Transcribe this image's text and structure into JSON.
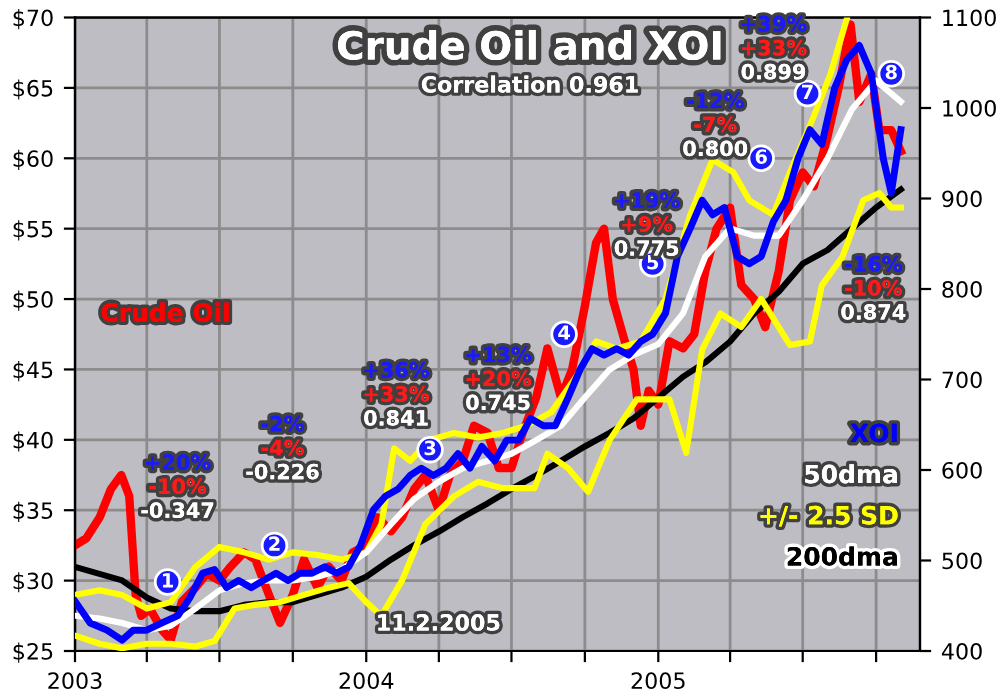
{
  "chart_data": {
    "type": "line",
    "title": "Crude Oil and XOI",
    "subtitle": "Correlation 0.961",
    "xlim": [
      "2003-01-01",
      "2005-11-25"
    ],
    "xticks": [
      {
        "value": "2003-01-01",
        "label": "2003"
      },
      {
        "value": "2003-04-01",
        "label": null
      },
      {
        "value": "2003-07-01",
        "label": null
      },
      {
        "value": "2003-10-01",
        "label": null
      },
      {
        "value": "2004-01-01",
        "label": "2004"
      },
      {
        "value": "2004-04-01",
        "label": null
      },
      {
        "value": "2004-07-01",
        "label": null
      },
      {
        "value": "2004-10-01",
        "label": null
      },
      {
        "value": "2005-01-01",
        "label": "2005"
      },
      {
        "value": "2005-04-01",
        "label": null
      },
      {
        "value": "2005-07-01",
        "label": null
      },
      {
        "value": "2005-10-01",
        "label": null
      }
    ],
    "ylim": [
      25,
      70
    ],
    "yticks": [
      {
        "value": 25,
        "label": "$25"
      },
      {
        "value": 30,
        "label": "$30"
      },
      {
        "value": 35,
        "label": "$35"
      },
      {
        "value": 40,
        "label": "$40"
      },
      {
        "value": 45,
        "label": "$45"
      },
      {
        "value": 50,
        "label": "$50"
      },
      {
        "value": 55,
        "label": "$55"
      },
      {
        "value": 60,
        "label": "$60"
      },
      {
        "value": 65,
        "label": "$65"
      },
      {
        "value": 70,
        "label": "$70"
      }
    ],
    "y2lim": [
      400,
      1100
    ],
    "y2ticks": [
      400,
      500,
      600,
      700,
      800,
      900,
      1000,
      1100
    ],
    "grid": true,
    "series": [
      {
        "name": "Crude Oil",
        "color": "#ff0000",
        "axis": "y",
        "x": [
          "2003-01-01",
          "2003-01-15",
          "2003-02-01",
          "2003-02-15",
          "2003-02-28",
          "2003-03-10",
          "2003-03-18",
          "2003-03-25",
          "2003-04-05",
          "2003-04-20",
          "2003-05-01",
          "2003-05-15",
          "2003-06-01",
          "2003-06-15",
          "2003-07-01",
          "2003-07-15",
          "2003-08-01",
          "2003-08-15",
          "2003-09-01",
          "2003-09-15",
          "2003-10-01",
          "2003-10-15",
          "2003-11-01",
          "2003-11-15",
          "2003-12-01",
          "2003-12-15",
          "2004-01-01",
          "2004-01-15",
          "2004-02-01",
          "2004-02-15",
          "2004-03-01",
          "2004-03-15",
          "2004-04-01",
          "2004-04-15",
          "2004-05-01",
          "2004-05-15",
          "2004-06-01",
          "2004-06-15",
          "2004-07-01",
          "2004-07-15",
          "2004-08-01",
          "2004-08-15",
          "2004-09-01",
          "2004-09-15",
          "2004-10-01",
          "2004-10-15",
          "2004-10-25",
          "2004-11-05",
          "2004-11-20",
          "2004-12-01",
          "2004-12-10",
          "2004-12-20",
          "2005-01-01",
          "2005-01-15",
          "2005-02-01",
          "2005-02-15",
          "2005-03-01",
          "2005-03-15",
          "2005-04-01",
          "2005-04-15",
          "2005-05-01",
          "2005-05-15",
          "2005-06-01",
          "2005-06-15",
          "2005-07-01",
          "2005-07-15",
          "2005-08-01",
          "2005-08-15",
          "2005-08-30",
          "2005-09-10",
          "2005-09-25",
          "2005-10-05",
          "2005-10-20",
          "2005-11-01"
        ],
        "values": [
          32.5,
          33,
          34.5,
          36.5,
          37.5,
          36,
          29,
          27.5,
          28,
          26.5,
          25.8,
          28.5,
          29.5,
          30.5,
          30,
          31,
          32,
          31.5,
          29,
          27,
          29,
          31.5,
          29.5,
          31,
          30,
          32,
          32.5,
          34.5,
          33.5,
          34.5,
          36.5,
          37.5,
          35,
          37.5,
          38.5,
          41,
          40.5,
          38,
          38,
          40.5,
          43,
          46.5,
          43,
          45,
          49.5,
          54,
          55,
          50,
          47,
          45,
          41,
          43.5,
          42.5,
          47,
          46.5,
          47.5,
          52,
          55,
          56.5,
          51,
          50,
          48,
          52,
          57,
          59,
          58,
          61.5,
          65,
          69.5,
          64,
          66,
          62,
          62,
          60.5
        ]
      },
      {
        "name": "XOI",
        "color": "#0000ff",
        "axis": "y2",
        "x": [
          "2003-01-01",
          "2003-01-20",
          "2003-02-10",
          "2003-03-01",
          "2003-03-15",
          "2003-04-01",
          "2003-04-20",
          "2003-05-10",
          "2003-05-25",
          "2003-06-10",
          "2003-06-25",
          "2003-07-10",
          "2003-07-25",
          "2003-08-10",
          "2003-08-25",
          "2003-09-10",
          "2003-09-25",
          "2003-10-10",
          "2003-10-25",
          "2003-11-10",
          "2003-11-25",
          "2003-12-10",
          "2003-12-25",
          "2004-01-10",
          "2004-01-25",
          "2004-02-10",
          "2004-02-25",
          "2004-03-10",
          "2004-03-25",
          "2004-04-10",
          "2004-04-25",
          "2004-05-10",
          "2004-05-25",
          "2004-06-10",
          "2004-06-25",
          "2004-07-10",
          "2004-07-25",
          "2004-08-10",
          "2004-08-25",
          "2004-09-10",
          "2004-09-25",
          "2004-10-10",
          "2004-10-25",
          "2004-11-10",
          "2004-11-25",
          "2004-12-10",
          "2004-12-25",
          "2005-01-10",
          "2005-01-25",
          "2005-02-10",
          "2005-02-25",
          "2005-03-10",
          "2005-03-25",
          "2005-04-10",
          "2005-04-25",
          "2005-05-10",
          "2005-05-25",
          "2005-06-10",
          "2005-06-25",
          "2005-07-10",
          "2005-07-25",
          "2005-08-10",
          "2005-08-25",
          "2005-09-10",
          "2005-09-25",
          "2005-10-10",
          "2005-10-20",
          "2005-11-01"
        ],
        "values": [
          455,
          431,
          423,
          412,
          423,
          423,
          431,
          439,
          459,
          486,
          490,
          470,
          478,
          470,
          478,
          486,
          478,
          486,
          486,
          493,
          486,
          493,
          517,
          556,
          571,
          579,
          594,
          602,
          594,
          602,
          618,
          602,
          626,
          610,
          633,
          633,
          657,
          649,
          649,
          680,
          711,
          734,
          727,
          734,
          727,
          742,
          750,
          773,
          836,
          867,
          898,
          882,
          890,
          836,
          828,
          836,
          874,
          898,
          944,
          976,
          960,
          1022,
          1053,
          1069,
          1038,
          944,
          906,
          976
        ]
      },
      {
        "name": "50dma",
        "color": "#ffffff",
        "axis": "y2",
        "x": [
          "2003-01-01",
          "2003-02-01",
          "2003-03-01",
          "2003-04-01",
          "2003-05-01",
          "2003-06-01",
          "2003-07-01",
          "2003-08-01",
          "2003-09-01",
          "2003-10-01",
          "2003-11-01",
          "2003-12-01",
          "2004-01-01",
          "2004-02-01",
          "2004-03-01",
          "2004-04-01",
          "2004-05-01",
          "2004-06-01",
          "2004-07-01",
          "2004-08-01",
          "2004-09-01",
          "2004-10-01",
          "2004-11-01",
          "2004-12-01",
          "2005-01-01",
          "2005-02-01",
          "2005-03-01",
          "2005-04-01",
          "2005-05-01",
          "2005-06-01",
          "2005-07-01",
          "2005-08-01",
          "2005-09-01",
          "2005-10-01",
          "2005-11-01"
        ],
        "values": [
          439,
          436,
          431,
          423,
          428,
          447,
          467,
          475,
          478,
          478,
          482,
          490,
          509,
          540,
          568,
          587,
          602,
          610,
          618,
          633,
          649,
          680,
          711,
          727,
          739,
          773,
          836,
          867,
          859,
          859,
          898,
          944,
          999,
          1030,
          1007
        ]
      },
      {
        "name": "+/- 2.5 SD",
        "color": "#ffff00",
        "axis": "y2",
        "x": [
          "2003-01-01",
          "2003-02-01",
          "2003-03-01",
          "2003-04-01",
          "2003-05-01",
          "2003-06-01",
          "2003-07-01",
          "2003-08-01",
          "2003-09-01",
          "2003-10-01",
          "2003-11-01",
          "2003-12-01",
          "2004-01-01",
          "2004-01-20",
          "2004-02-05",
          "2004-02-25",
          "2004-03-20",
          "2004-04-20",
          "2004-05-20",
          "2004-06-20",
          "2004-07-20",
          "2004-08-20",
          "2004-09-20",
          "2004-10-15",
          "2004-11-10",
          "2004-12-10",
          "2005-01-10",
          "2005-02-10",
          "2005-03-10",
          "2005-04-05",
          "2005-04-25",
          "2005-05-25",
          "2005-06-15",
          "2005-07-15",
          "2005-08-05",
          "2005-08-25"
        ],
        "values": [
          462,
          467,
          462,
          447,
          454,
          493,
          515,
          509,
          501,
          509,
          506,
          501,
          509,
          540,
          624,
          610,
          633,
          641,
          636,
          641,
          649,
          664,
          703,
          742,
          734,
          742,
          789,
          882,
          943,
          929,
          898,
          882,
          929,
          991,
          1038,
          1098
        ]
      },
      {
        "color": "#ffff00",
        "axis": "y2",
        "x": [
          "2003-01-01",
          "2003-02-01",
          "2003-03-01",
          "2003-04-01",
          "2003-05-01",
          "2003-06-01",
          "2003-06-25",
          "2003-07-20",
          "2003-08-15",
          "2003-09-15",
          "2003-10-15",
          "2003-11-15",
          "2003-12-10",
          "2004-01-01",
          "2004-01-20",
          "2004-02-15",
          "2004-03-15",
          "2004-04-20",
          "2004-05-20",
          "2004-06-20",
          "2004-07-30",
          "2004-08-15",
          "2004-09-10",
          "2004-10-05",
          "2004-11-01",
          "2004-12-05",
          "2005-01-15",
          "2005-02-05",
          "2005-02-25",
          "2005-03-20",
          "2005-04-15",
          "2005-05-10",
          "2005-06-15",
          "2005-07-10",
          "2005-07-25",
          "2005-08-20",
          "2005-09-15",
          "2005-10-05",
          "2005-10-20",
          "2005-11-01"
        ],
        "values": [
          417,
          408,
          403,
          408,
          408,
          405,
          411,
          447,
          451,
          454,
          462,
          470,
          475,
          454,
          439,
          478,
          540,
          571,
          587,
          580,
          580,
          618,
          602,
          576,
          633,
          678,
          678,
          619,
          733,
          773,
          758,
          789,
          738,
          742,
          804,
          836,
          898,
          906,
          890,
          890
        ]
      },
      {
        "name": "200dma",
        "color": "#000000",
        "axis": "y2",
        "x": [
          "2003-01-01",
          "2003-03-01",
          "2003-04-01",
          "2003-05-01",
          "2003-06-01",
          "2003-07-01",
          "2003-08-01",
          "2003-09-01",
          "2003-10-01",
          "2003-11-01",
          "2003-12-01",
          "2004-01-01",
          "2004-02-01",
          "2004-03-01",
          "2004-04-01",
          "2004-05-01",
          "2004-06-01",
          "2004-07-01",
          "2004-08-01",
          "2004-09-01",
          "2004-10-01",
          "2004-11-01",
          "2004-12-01",
          "2005-01-01",
          "2005-02-01",
          "2005-03-01",
          "2005-04-01",
          "2005-05-01",
          "2005-06-01",
          "2005-07-01",
          "2005-08-01",
          "2005-09-01",
          "2005-10-01",
          "2005-11-01"
        ],
        "values": [
          493,
          478,
          459,
          447,
          444,
          444,
          451,
          454,
          454,
          462,
          470,
          482,
          501,
          517,
          532,
          548,
          563,
          579,
          594,
          610,
          626,
          641,
          657,
          680,
          703,
          719,
          742,
          773,
          797,
          828,
          843,
          867,
          890,
          910
        ]
      }
    ],
    "annotations": [
      "+20%",
      "-10%",
      "-0.347",
      "-2%",
      "-4%",
      "-0.226",
      "+36%",
      "+33%",
      "0.841",
      "+13%",
      "+20%",
      "0.745",
      "+19%",
      "+9%",
      "0.775",
      "-12%",
      "-7%",
      "0.800",
      "+39%",
      "+33%",
      "0.899",
      "-16%",
      "-10%",
      "0.874",
      {
        "text": "1",
        "x": "2003-04-27",
        "y": 29.9
      },
      {
        "text": "2",
        "x": "2003-09-08",
        "y": 32.5
      },
      {
        "text": "3",
        "x": "2004-03-21",
        "y": 39.3
      },
      {
        "text": "4",
        "x": "2004-09-05",
        "y": 47.5
      },
      {
        "text": "5",
        "x": "2004-12-25",
        "y": 52.5
      },
      {
        "text": "6",
        "x": "2005-05-10",
        "y": 60.0
      },
      {
        "text": "7",
        "x": "2005-07-07",
        "y": 64.6
      },
      {
        "text": "8",
        "x": "2005-10-20",
        "y": 66.0
      },
      "11.2.2005"
    ]
  }
}
